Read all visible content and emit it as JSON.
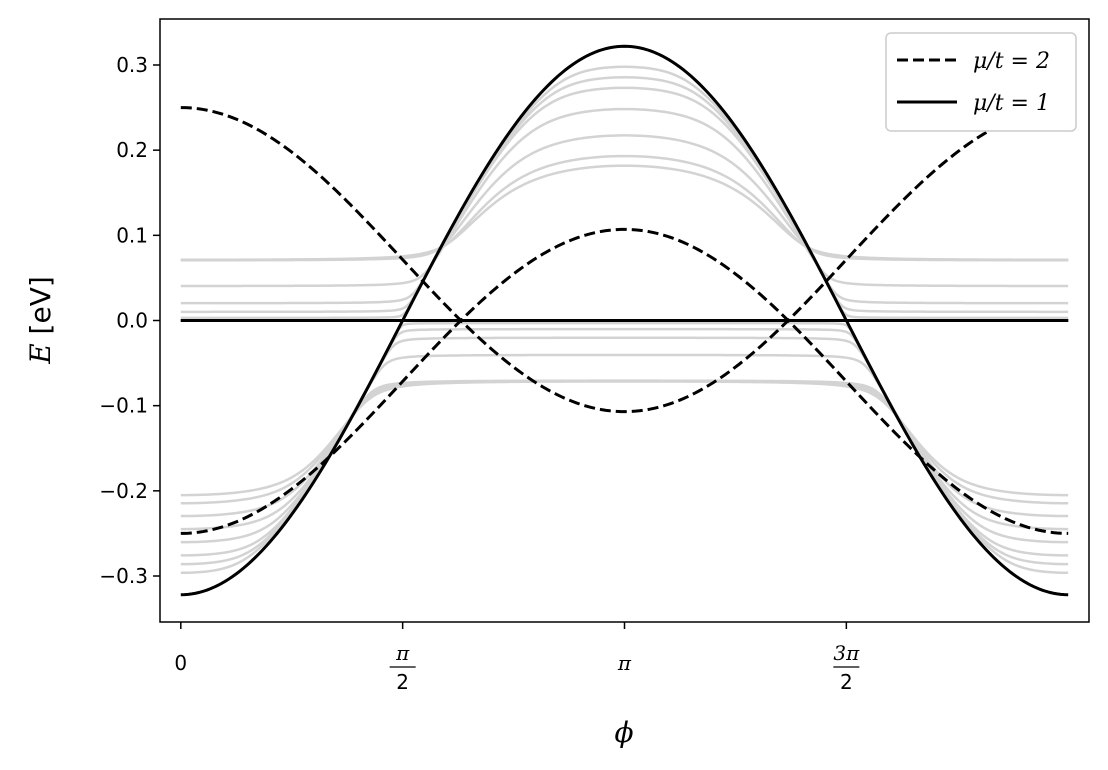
{
  "chart_data": {
    "type": "line",
    "title": "",
    "xlabel": "ϕ",
    "ylabel": "E [eV]",
    "xlim": [
      -0.1473,
      6.4305
    ],
    "ylim": [
      -0.354,
      0.354
    ],
    "xticks": [
      {
        "value": 0,
        "label": "0"
      },
      {
        "value": 1.5708,
        "label": "π/2",
        "num": "π",
        "den": "2"
      },
      {
        "value": 3.1416,
        "label": "π"
      },
      {
        "value": 4.7124,
        "label": "3π/2",
        "num": "3π",
        "den": "2"
      }
    ],
    "yticks": [
      {
        "value": 0.3,
        "label": "0.3"
      },
      {
        "value": 0.2,
        "label": "0.2"
      },
      {
        "value": 0.1,
        "label": "0.1"
      },
      {
        "value": 0.0,
        "label": "0.0"
      },
      {
        "value": -0.1,
        "label": "−0.1"
      },
      {
        "value": -0.2,
        "label": "−0.2"
      },
      {
        "value": -0.3,
        "label": "−0.3"
      }
    ],
    "grid": false,
    "legend_position": "top-right",
    "legend": [
      {
        "label": "μ/t = 2",
        "style": "dashed",
        "color": "#000000"
      },
      {
        "label": "μ/t = 1",
        "style": "solid",
        "color": "#000000"
      }
    ],
    "x_range": [
      0,
      6.2832
    ],
    "series": [
      {
        "name": "μ/t = 2",
        "style": "dashed",
        "color": "#000000",
        "model": "cos",
        "center": 0.0715,
        "amplitude": 0.1785,
        "phase": 0
      },
      {
        "name": "μ/t = 2",
        "style": "dashed",
        "color": "#000000",
        "model": "cos",
        "center": -0.0715,
        "amplitude": 0.1785,
        "phase": 3.1416
      },
      {
        "name": "μ/t = 1",
        "style": "solid",
        "color": "#000000",
        "model": "cos",
        "center": 0,
        "amplitude": 0.322,
        "phase": 0,
        "clip": "upper"
      },
      {
        "name": "μ/t = 1",
        "style": "solid",
        "color": "#000000",
        "model": "cos",
        "center": 0,
        "amplitude": 0.322,
        "phase": 3.1416,
        "clip": "lower"
      },
      {
        "name": "μ/t = 1",
        "style": "solid",
        "color": "#000000",
        "model": "constant",
        "value": 0
      }
    ],
    "intermediate_curves": {
      "color": "#d3d3d3",
      "model": "smooth-cos",
      "amplitude": 0.322,
      "upper_offsets": [
        0.0,
        0.005,
        0.01,
        0.02,
        0.04,
        0.07
      ],
      "upper_edge_values": [
        0.003,
        0.01,
        0.02,
        0.04,
        0.07
      ],
      "upper_peaks": [
        0.31,
        0.3,
        0.29,
        0.27,
        0.245,
        0.225,
        0.215
      ],
      "lower_edges": [
        -0.305,
        -0.295,
        -0.285,
        -0.27,
        -0.255,
        -0.24,
        -0.225,
        -0.215
      ],
      "lower_center_values": [
        -0.003,
        -0.01,
        -0.02,
        -0.04,
        -0.07
      ]
    }
  }
}
